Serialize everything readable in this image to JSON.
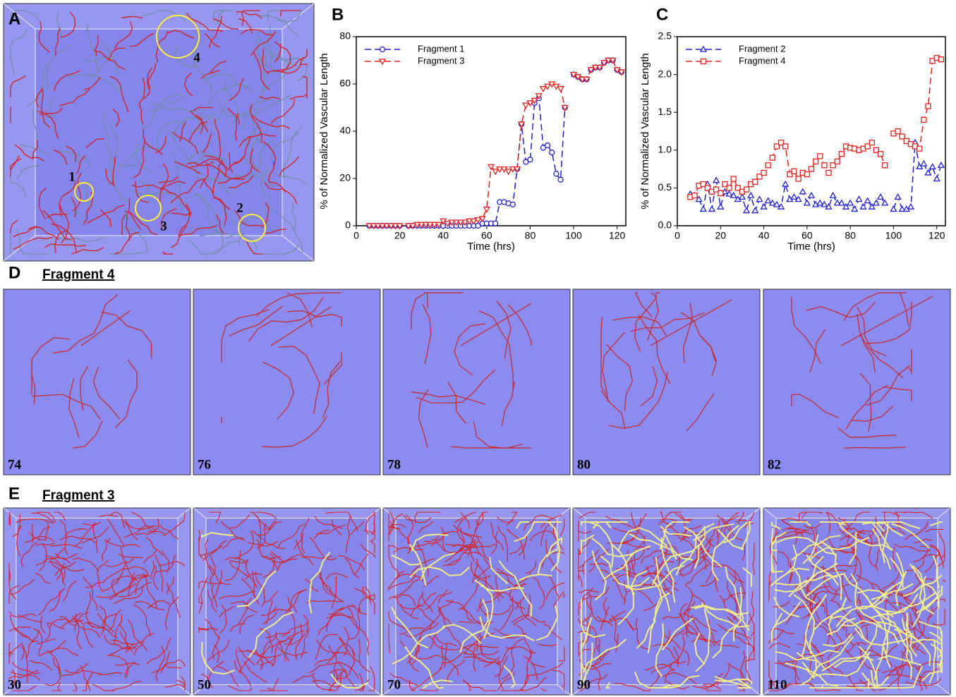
{
  "panel_a": {
    "label": "A",
    "circles": [
      "1",
      "2",
      "3",
      "4"
    ]
  },
  "panel_d": {
    "label": "D",
    "title": "Fragment 4",
    "frames": [
      "74",
      "76",
      "78",
      "80",
      "82"
    ]
  },
  "panel_e": {
    "label": "E",
    "title": "Fragment 3",
    "frames": [
      "30",
      "50",
      "70",
      "90",
      "110"
    ]
  },
  "chart_data": [
    {
      "type": "line",
      "panel": "B",
      "x_label": "Time (hrs)",
      "y_label": "% of Normalized Vascular Length",
      "xlim": [
        0,
        124
      ],
      "xticks": [
        0,
        20,
        40,
        60,
        80,
        100,
        120
      ],
      "ylim": [
        0,
        80
      ],
      "yticks": [
        0,
        20,
        40,
        60,
        80
      ],
      "legend": "upper left",
      "x": [
        6,
        8,
        10,
        12,
        14,
        16,
        18,
        20,
        22,
        24,
        26,
        28,
        30,
        32,
        34,
        36,
        38,
        40,
        42,
        44,
        46,
        48,
        50,
        52,
        54,
        56,
        58,
        60,
        62,
        64,
        66,
        68,
        70,
        72,
        74,
        76,
        78,
        80,
        82,
        84,
        86,
        88,
        90,
        92,
        94,
        96,
        98,
        100,
        102,
        104,
        106,
        108,
        110,
        112,
        114,
        116,
        118,
        120,
        122
      ],
      "series": [
        {
          "name": "Fragment 1",
          "color": "#1f1fd6",
          "marker": "circle",
          "values": [
            0,
            0,
            0,
            0,
            0,
            0,
            0,
            0,
            null,
            0,
            0,
            0,
            0,
            0,
            0,
            0,
            0,
            0,
            0,
            0,
            0,
            0,
            0,
            0,
            0,
            0,
            1,
            1,
            1,
            1,
            10,
            10,
            9.5,
            9,
            24,
            43,
            27,
            28,
            52,
            54,
            33,
            34,
            31,
            22,
            19.5,
            50,
            null,
            64,
            63,
            62,
            62,
            66,
            67,
            67,
            69,
            70,
            70,
            66,
            65
          ]
        },
        {
          "name": "Fragment 3",
          "color": "#e8201c",
          "marker": "triangle-down",
          "values": [
            0,
            0,
            0,
            0,
            0,
            0,
            0,
            0,
            null,
            0,
            0,
            0.5,
            0.5,
            0.5,
            0.5,
            0.5,
            0.5,
            2,
            1,
            1.5,
            1.5,
            1.5,
            1.5,
            2,
            2,
            2.5,
            3,
            7,
            25,
            23,
            24,
            24,
            23,
            24,
            24,
            43,
            51,
            52,
            53,
            55,
            58,
            59,
            60,
            59,
            58,
            50,
            null,
            64,
            63,
            62,
            62,
            66,
            67,
            67,
            69,
            70,
            70,
            66,
            65
          ]
        }
      ]
    },
    {
      "type": "line",
      "panel": "C",
      "x_label": "Time (hrs)",
      "y_label": "% of Normalized Vascular Length",
      "xlim": [
        0,
        124
      ],
      "xticks": [
        0,
        20,
        40,
        60,
        80,
        100,
        120
      ],
      "ylim": [
        0,
        2.5
      ],
      "yticks": [
        {
          "value": 0,
          "label": "0.0"
        },
        {
          "value": 0.5,
          "label": "0.5"
        },
        {
          "value": 1,
          "label": "1.0"
        },
        {
          "value": 1.5,
          "label": "1.5"
        },
        {
          "value": 2,
          "label": "2.0"
        },
        {
          "value": 2.5,
          "label": "2.5"
        }
      ],
      "legend": "upper left",
      "x": [
        6,
        8,
        10,
        12,
        14,
        16,
        18,
        20,
        22,
        24,
        26,
        28,
        30,
        32,
        34,
        36,
        38,
        40,
        42,
        44,
        46,
        48,
        50,
        52,
        54,
        56,
        58,
        60,
        62,
        64,
        66,
        68,
        70,
        72,
        74,
        76,
        78,
        80,
        82,
        84,
        86,
        88,
        90,
        92,
        94,
        96,
        98,
        100,
        102,
        104,
        106,
        108,
        110,
        112,
        114,
        116,
        118,
        120,
        122
      ],
      "series": [
        {
          "name": "Fragment 2",
          "color": "#1f1fd6",
          "marker": "triangle-up",
          "values": [
            0.42,
            0.4,
            0.35,
            0.22,
            0.55,
            0.22,
            0.6,
            0.25,
            0.45,
            0.42,
            0.4,
            0.35,
            0.38,
            0.2,
            0.4,
            0.2,
            0.35,
            0.25,
            0.33,
            0.3,
            0.28,
            0.25,
            0.55,
            0.35,
            0.38,
            0.35,
            0.45,
            0.3,
            0.4,
            0.28,
            0.3,
            0.28,
            0.25,
            0.4,
            0.3,
            0.3,
            0.25,
            0.3,
            0.22,
            0.35,
            0.25,
            0.33,
            0.25,
            0.3,
            0.38,
            0.3,
            null,
            0.22,
            0.38,
            0.22,
            0.22,
            0.25,
            1.1,
            0.78,
            0.82,
            0.7,
            0.78,
            0.62,
            0.8
          ]
        },
        {
          "name": "Fragment 4",
          "color": "#e8201c",
          "marker": "square",
          "values": [
            0.38,
            0.4,
            0.53,
            0.55,
            0.5,
            0.45,
            0.48,
            0.43,
            0.55,
            0.5,
            0.62,
            0.5,
            0.45,
            0.48,
            0.55,
            0.58,
            0.65,
            0.7,
            0.8,
            0.9,
            1.05,
            1.1,
            1.05,
            0.68,
            0.72,
            0.62,
            0.7,
            0.68,
            0.75,
            0.85,
            0.92,
            0.8,
            0.7,
            0.8,
            0.85,
            0.95,
            1.05,
            1.03,
            1.02,
            1.0,
            1.02,
            1.05,
            1.1,
            1.0,
            0.95,
            0.8,
            null,
            1.22,
            1.25,
            1.18,
            1.12,
            1.08,
            1.05,
            1.02,
            1.4,
            1.58,
            2.18,
            2.22,
            2.2
          ]
        }
      ]
    }
  ]
}
